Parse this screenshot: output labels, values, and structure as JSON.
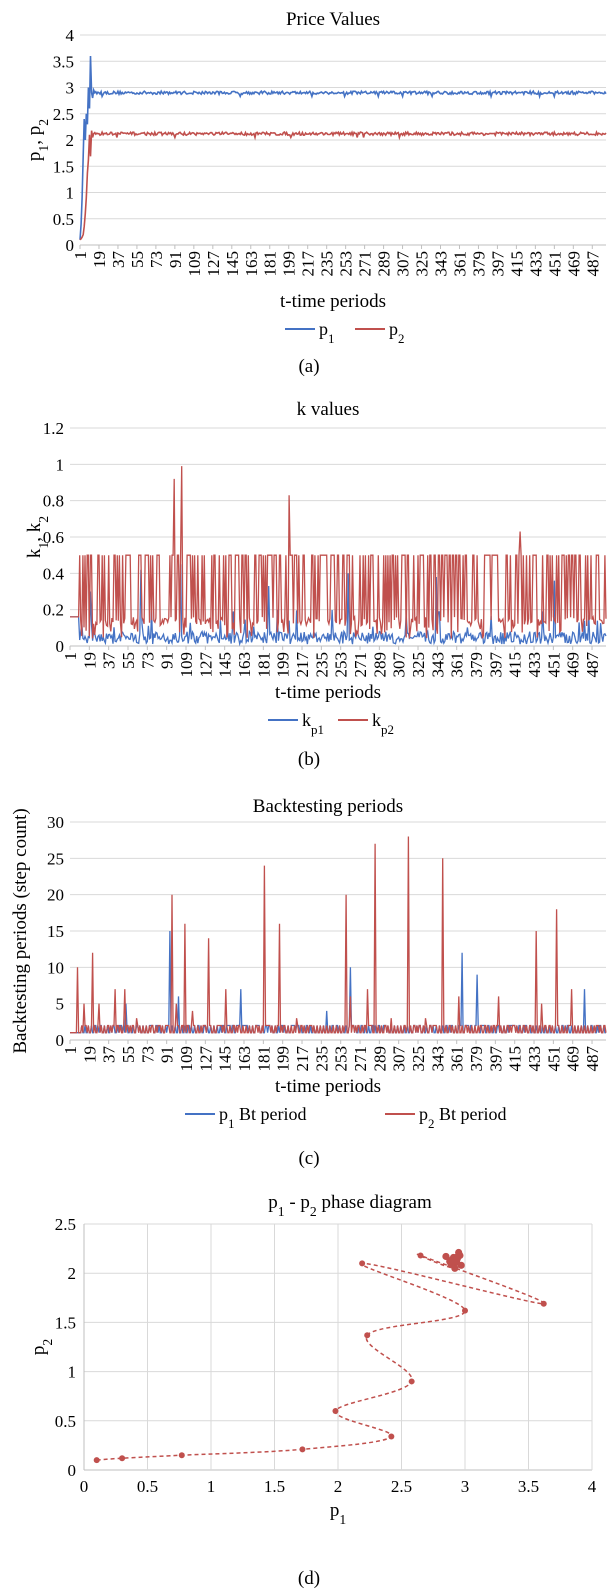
{
  "chart_data": [
    {
      "type": "line",
      "title": "Price Values",
      "xlabel": "t-time periods",
      "ylabel": "p1, p2",
      "ylim": [
        0,
        4
      ],
      "yticks": [
        "0",
        "0.5",
        "1",
        "1.5",
        "2",
        "2.5",
        "3",
        "3.5",
        "4"
      ],
      "xticks": [
        "1",
        "19",
        "37",
        "55",
        "73",
        "91",
        "109",
        "127",
        "145",
        "163",
        "181",
        "199",
        "217",
        "235",
        "253",
        "271",
        "289",
        "307",
        "325",
        "343",
        "361",
        "379",
        "397",
        "415",
        "433",
        "451",
        "469",
        "487"
      ],
      "x_max": 500,
      "grid": true,
      "legend": "bottom",
      "caption": "(a)",
      "colors": {
        "p1": "#4472c4",
        "p2": "#c0504d"
      },
      "series": [
        {
          "name": "p1",
          "key": "p1",
          "base": "p",
          "sub": "1",
          "values": [
            0.1,
            0.4,
            0.9,
            1.7,
            2.4,
            2.0,
            2.5,
            2.3,
            3.0,
            2.6,
            3.6,
            2.9,
            2.8,
            2.95,
            2.9,
            2.92,
            2.88,
            2.91,
            2.9
          ],
          "steady": 2.9,
          "noise": 0.03
        },
        {
          "name": "p2",
          "key": "p2",
          "base": "p",
          "sub": "2",
          "values": [
            0.1,
            0.12,
            0.15,
            0.2,
            0.35,
            0.6,
            0.9,
            1.37,
            1.62,
            2.1,
            1.69,
            2.18,
            2.05,
            2.12,
            2.14,
            2.11,
            2.13,
            2.12,
            2.12
          ],
          "steady": 2.12,
          "noise": 0.03
        }
      ]
    },
    {
      "type": "line",
      "title": "k values",
      "xlabel": "t-time periods",
      "ylabel": "k1, k2",
      "ylim": [
        0,
        1.2
      ],
      "yticks": [
        "0",
        "0.2",
        "0.4",
        "0.6",
        "0.8",
        "1",
        "1.2"
      ],
      "xticks": [
        "1",
        "19",
        "37",
        "55",
        "73",
        "91",
        "109",
        "127",
        "145",
        "163",
        "181",
        "199",
        "217",
        "235",
        "253",
        "271",
        "289",
        "307",
        "325",
        "343",
        "361",
        "379",
        "397",
        "415",
        "433",
        "451",
        "469",
        "487"
      ],
      "x_max": 500,
      "grid": true,
      "legend": "bottom",
      "caption": "(b)",
      "colors": {
        "kp1": "#4472c4",
        "kp2": "#c0504d"
      },
      "series": [
        {
          "name": "kp1",
          "key": "kp1",
          "base": "k",
          "sub": "p1",
          "pattern": "kp1",
          "peaks": [
            [
              104,
              0.45
            ],
            [
              67,
              0.42
            ],
            [
              260,
              0.4
            ],
            [
              342,
              0.38
            ],
            [
              452,
              0.36
            ],
            [
              186,
              0.33
            ],
            [
              20,
              0.3
            ]
          ]
        },
        {
          "name": "kp2",
          "key": "kp2",
          "base": "k",
          "sub": "p2",
          "pattern": "kp2",
          "peaks": [
            [
              98,
              0.92
            ],
            [
              105,
              0.99
            ],
            [
              205,
              0.83
            ],
            [
              420,
              0.63
            ]
          ]
        }
      ]
    },
    {
      "type": "line",
      "title": "Backtesting periods",
      "xlabel": "t-time periods",
      "ylabel": "Backtesting periods (step count)",
      "ylim": [
        0,
        30
      ],
      "yticks": [
        "0",
        "5",
        "10",
        "15",
        "20",
        "25",
        "30"
      ],
      "xticks": [
        "1",
        "19",
        "37",
        "55",
        "73",
        "91",
        "109",
        "127",
        "145",
        "163",
        "181",
        "199",
        "217",
        "235",
        "253",
        "271",
        "289",
        "307",
        "325",
        "343",
        "361",
        "379",
        "397",
        "415",
        "433",
        "451",
        "469",
        "487"
      ],
      "x_max": 500,
      "grid": true,
      "legend": "bottom",
      "caption": "(c)",
      "colors": {
        "bt1": "#4472c4",
        "bt2": "#c0504d"
      },
      "series": [
        {
          "name": "p1 Bt period",
          "key": "bt1",
          "base": "p",
          "sub": "1",
          "suffix": " Bt period",
          "base_value": 1,
          "peaks": [
            [
              53,
              5
            ],
            [
              94,
              15
            ],
            [
              102,
              6
            ],
            [
              160,
              7
            ],
            [
              240,
              4
            ],
            [
              262,
              10
            ],
            [
              366,
              12
            ],
            [
              380,
              9
            ],
            [
              480,
              7
            ]
          ]
        },
        {
          "name": "p2 Bt period",
          "key": "bt2",
          "base": "p",
          "sub": "2",
          "suffix": " Bt period",
          "base_value": 1,
          "peaks": [
            [
              8,
              10
            ],
            [
              14,
              5
            ],
            [
              22,
              12
            ],
            [
              28,
              5
            ],
            [
              43,
              7
            ],
            [
              52,
              7
            ],
            [
              63,
              3
            ],
            [
              96,
              20
            ],
            [
              100,
              5
            ],
            [
              108,
              16
            ],
            [
              115,
              4
            ],
            [
              130,
              14
            ],
            [
              146,
              7
            ],
            [
              182,
              24
            ],
            [
              196,
              16
            ],
            [
              212,
              3
            ],
            [
              258,
              20
            ],
            [
              262,
              6
            ],
            [
              278,
              7
            ],
            [
              285,
              27
            ],
            [
              300,
              3
            ],
            [
              316,
              28
            ],
            [
              332,
              3
            ],
            [
              348,
              25
            ],
            [
              363,
              6
            ],
            [
              400,
              6
            ],
            [
              435,
              15
            ],
            [
              440,
              5
            ],
            [
              454,
              18
            ],
            [
              468,
              7
            ]
          ]
        }
      ]
    },
    {
      "type": "scatter",
      "title": "p1 - p2 phase diagram",
      "title_parts": {
        "a": "p",
        "a_sub": "1",
        "mid": " - ",
        "b": "p",
        "b_sub": "2",
        "rest": " phase diagram"
      },
      "xlabel": "p1",
      "ylabel": "p2",
      "xlim": [
        0,
        4
      ],
      "ylim": [
        0,
        2.5
      ],
      "xticks": [
        "0",
        "0.5",
        "1",
        "1.5",
        "2",
        "2.5",
        "3",
        "3.5",
        "4"
      ],
      "yticks": [
        "0",
        "0.5",
        "1",
        "1.5",
        "2",
        "2.5"
      ],
      "grid": true,
      "caption": "(d)",
      "color": "#c0504d",
      "points": [
        [
          0.1,
          0.1
        ],
        [
          0.3,
          0.12
        ],
        [
          0.77,
          0.15
        ],
        [
          1.72,
          0.21
        ],
        [
          2.42,
          0.34
        ],
        [
          1.98,
          0.6
        ],
        [
          2.58,
          0.9
        ],
        [
          2.23,
          1.37
        ],
        [
          3.0,
          1.62
        ],
        [
          2.19,
          2.1
        ],
        [
          3.62,
          1.69
        ],
        [
          2.65,
          2.18
        ],
        [
          2.92,
          2.05
        ],
        [
          2.95,
          2.21
        ],
        [
          2.88,
          2.12
        ],
        [
          2.91,
          2.16
        ],
        [
          2.97,
          2.08
        ],
        [
          2.85,
          2.17
        ],
        [
          2.93,
          2.11
        ],
        [
          2.9,
          2.14
        ],
        [
          2.96,
          2.18
        ],
        [
          2.89,
          2.09
        ],
        [
          2.94,
          2.15
        ],
        [
          2.91,
          2.12
        ]
      ]
    }
  ]
}
